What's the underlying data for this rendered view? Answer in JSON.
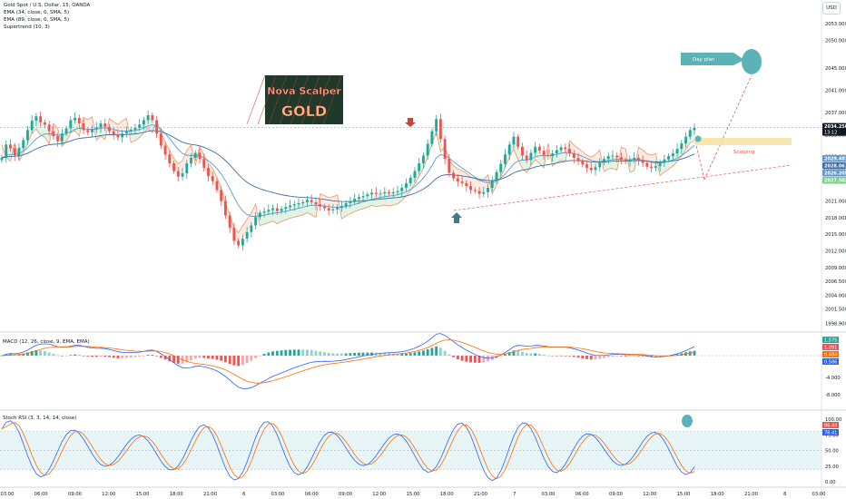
{
  "header": {
    "symbol": "Gold Spot / U.S. Dollar, 15, OANDA",
    "indicators": [
      "EMA (34, close, 0, SMA, 5)",
      "EMA (89, close, 0, SMA, 5)",
      "Supertrend (10, 3)"
    ],
    "currency_button": "USD"
  },
  "annotations": {
    "logo_line1": "Nova Scalper",
    "logo_line2": "GOLD",
    "day_plan": "Day plan",
    "scalping": "Scalping"
  },
  "colors": {
    "up": "#26a69a",
    "down": "#ef5350",
    "ema34": "#5b9bd5",
    "ema89": "#3a6ea5",
    "supertrend_down": "#f5a47a",
    "supertrend_up": "#7ccf8a",
    "annotation_red": "#e45b5b",
    "day_plan_teal": "#5bb3b8",
    "macd_line": "#2962ff",
    "signal_line": "#ff6d00",
    "stoch_k": "#2962ff",
    "stoch_d": "#ff6d00"
  },
  "chart_data": [
    {
      "type": "candlestick",
      "pane": "price",
      "y_ticks": [
        "2053.000",
        "2050.000",
        "2045.000",
        "2041.000",
        "2037.000",
        "2033.000",
        "2029.000",
        "2025.000",
        "2021.000",
        "2018.000",
        "2015.000",
        "2012.000",
        "2009.000",
        "2006.500",
        "2004.000",
        "2001.500",
        "1998.900"
      ],
      "ylim": [
        1998.0,
        2055.0
      ],
      "price_labels": [
        {
          "value": "2034.250",
          "sub": "13:12",
          "color": "#131722"
        },
        {
          "value": "2029.481",
          "color": "#5b9bd5"
        },
        {
          "value": "2028.061",
          "color": "#3a6ea5"
        },
        {
          "value": "2026.205",
          "color": "#5b9bd5"
        },
        {
          "value": "2027.502",
          "color": "#7ccf8a"
        }
      ],
      "current_price": 2034.25,
      "x_ticks": [
        "03:00",
        "06:00",
        "09:00",
        "12:00",
        "15:00",
        "18:00",
        "21:00",
        "6",
        "03:00",
        "06:00",
        "09:00",
        "12:00",
        "15:00",
        "18:00",
        "21:00",
        "7",
        "03:00",
        "06:00",
        "09:00",
        "12:00",
        "15:00",
        "18:00",
        "21:00",
        "8",
        "03:00"
      ],
      "closes": [
        2028.8,
        2031.2,
        2030.5,
        2029.2,
        2030.6,
        2032.0,
        2033.8,
        2035.5,
        2036.3,
        2035.2,
        2034.8,
        2033.6,
        2032.7,
        2031.8,
        2033.2,
        2034.1,
        2035.6,
        2036.0,
        2035.0,
        2033.8,
        2033.4,
        2033.9,
        2034.3,
        2035.0,
        2034.4,
        2033.6,
        2033.0,
        2032.5,
        2033.2,
        2033.6,
        2033.9,
        2034.2,
        2034.8,
        2035.6,
        2036.5,
        2035.6,
        2033.2,
        2031.0,
        2029.4,
        2027.8,
        2026.4,
        2025.4,
        2026.0,
        2027.8,
        2028.8,
        2029.7,
        2028.6,
        2027.0,
        2025.5,
        2024.6,
        2023.0,
        2021.0,
        2018.4,
        2016.2,
        2013.8,
        2013.0,
        2014.2,
        2015.4,
        2016.6,
        2018.1,
        2018.9,
        2019.1,
        2019.4,
        2019.7,
        2019.2,
        2019.6,
        2019.9,
        2020.2,
        2020.4,
        2020.6,
        2020.8,
        2021.2,
        2020.8,
        2020.4,
        2020.0,
        2019.7,
        2019.3,
        2019.5,
        2019.8,
        2020.1,
        2020.6,
        2021.0,
        2021.4,
        2021.7,
        2021.9,
        2022.2,
        2022.5,
        2022.3,
        2022.4,
        2022.6,
        2022.4,
        2022.6,
        2022.8,
        2023.4,
        2024.2,
        2025.2,
        2026.4,
        2027.8,
        2029.2,
        2031.3,
        2033.6,
        2035.8,
        2032.2,
        2028.6,
        2026.1,
        2025.1,
        2024.5,
        2024.2,
        2023.7,
        2023.0,
        2022.8,
        2022.3,
        2022.6,
        2023.4,
        2024.6,
        2026.2,
        2027.7,
        2029.4,
        2031.2,
        2032.6,
        2030.8,
        2029.2,
        2028.4,
        2029.7,
        2030.8,
        2030.1,
        2029.3,
        2029.1,
        2029.6,
        2030.2,
        2030.7,
        2030.4,
        2029.6,
        2028.8,
        2028.2,
        2027.6,
        2027.0,
        2026.6,
        2027.1,
        2027.9,
        2028.6,
        2029.1,
        2029.2,
        2028.9,
        2028.4,
        2028.1,
        2028.5,
        2028.8,
        2028.4,
        2027.9,
        2027.2,
        2027.0,
        2027.3,
        2027.9,
        2028.5,
        2029.1,
        2029.6,
        2030.4,
        2031.4,
        2032.6,
        2033.8,
        2034.25
      ],
      "series": [
        {
          "name": "EMA (34, close, 0, SMA, 5)"
        },
        {
          "name": "EMA (89, close, 0, SMA, 5)"
        },
        {
          "name": "Supertrend (10, 3)"
        }
      ]
    },
    {
      "type": "histogram+line",
      "pane": "macd",
      "title": "MACD (12, 26, close, 9, EMA, EMA)",
      "y_ticks": [
        "-4.000",
        "-8.000"
      ],
      "labels": [
        "1.575",
        "1.091",
        "0.484",
        "0.586"
      ]
    },
    {
      "type": "line",
      "pane": "stoch_rsi",
      "title": "Stoch RSI (3, 3, 14, 14, close)",
      "y_ticks": [
        "100.00",
        "75.00",
        "50.00",
        "25.00",
        "0.00"
      ],
      "ylim": [
        0,
        100
      ],
      "labels": [
        "86.44",
        "78.41"
      ]
    }
  ]
}
